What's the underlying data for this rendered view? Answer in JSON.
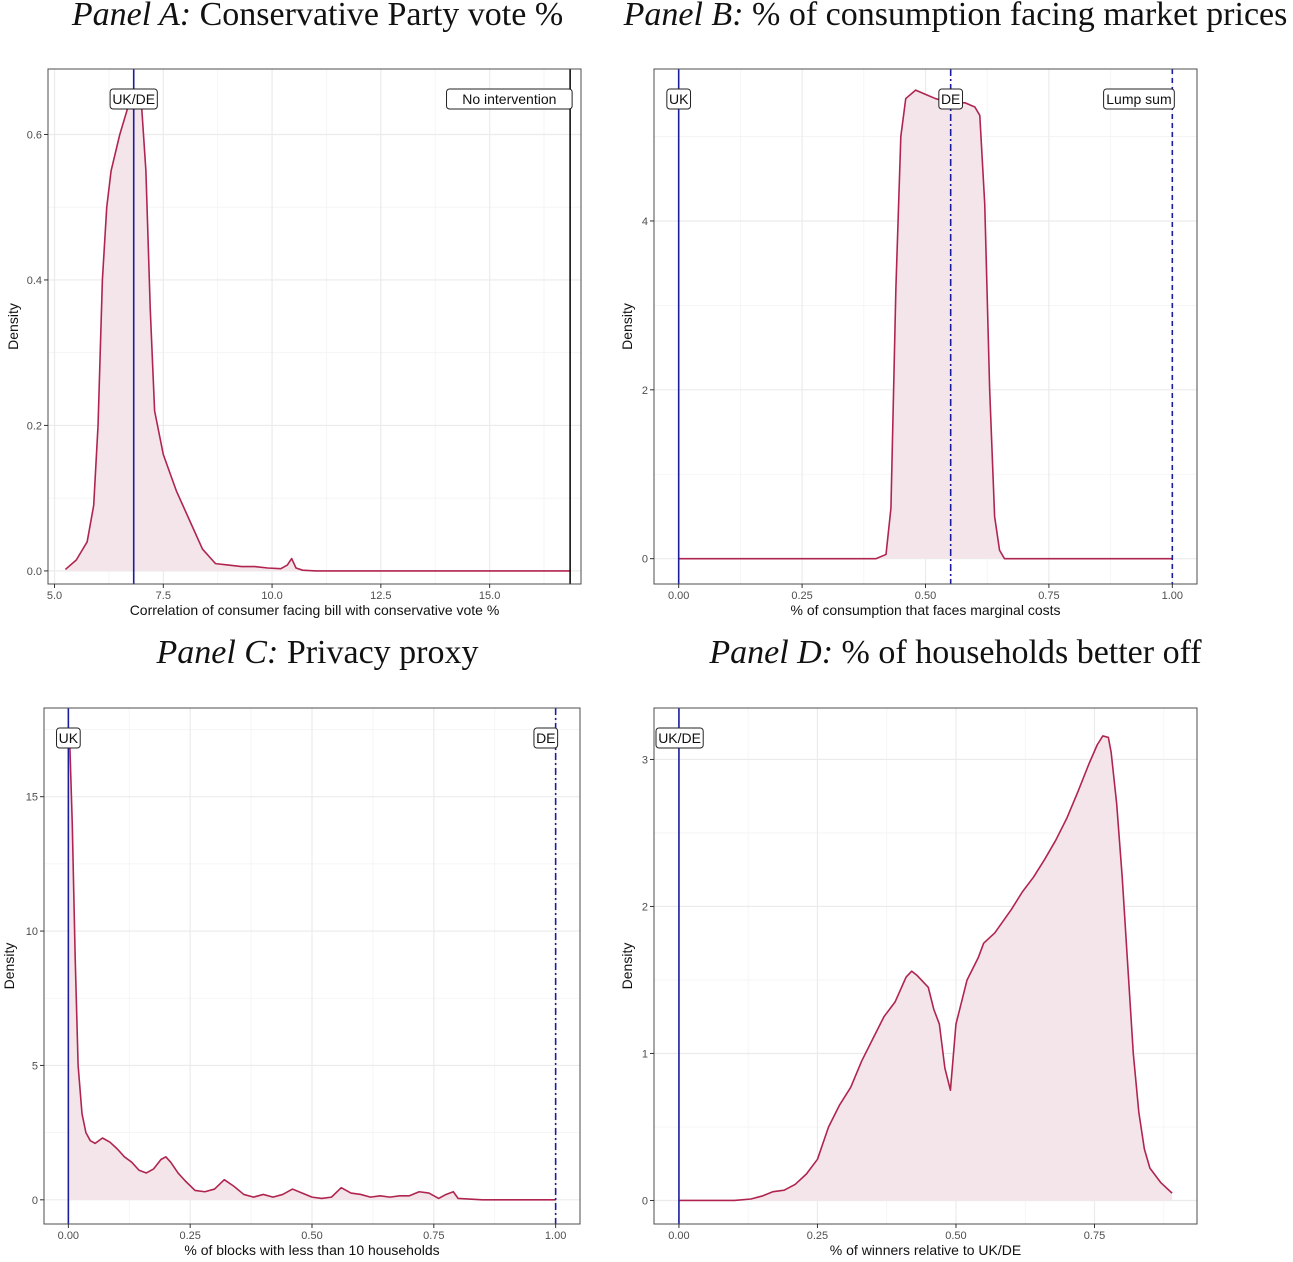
{
  "colors": {
    "density_line": "#b0254f",
    "density_fill": "#f4e5ea",
    "uk_line": "#1c1ca0",
    "de_line": "#1c1ca0",
    "black_line": "#111111",
    "grid": "#ebebeb",
    "frame": "#4d4d4d"
  },
  "chart_data": [
    {
      "type": "area",
      "panel_prefix": "Panel A:",
      "title": "Conservative Party vote %",
      "xlabel": "Correlation of consumer facing bill with conservative vote %",
      "ylabel": "Density",
      "xlim": [
        4.85,
        17.1
      ],
      "ylim": [
        -0.018,
        0.69
      ],
      "xticks": [
        5.0,
        7.5,
        10.0,
        12.5,
        15.0
      ],
      "xtick_labels": [
        "5.0",
        "7.5",
        "10.0",
        "12.5",
        "15.0"
      ],
      "yticks": [
        0.0,
        0.2,
        0.4,
        0.6
      ],
      "ytick_labels": [
        "0.0",
        "0.2",
        "0.4",
        "0.6"
      ],
      "grid": true,
      "series": [
        {
          "x": [
            5.25,
            5.5,
            5.75,
            5.9,
            6.0,
            6.1,
            6.2,
            6.3,
            6.5,
            6.7,
            6.85,
            7.0,
            7.1,
            7.2,
            7.3,
            7.5,
            7.8,
            8.1,
            8.4,
            8.7,
            9.0,
            9.3,
            9.6,
            9.9,
            10.2,
            10.35,
            10.45,
            10.55,
            10.7,
            11.0,
            12.0,
            13.0,
            14.0,
            15.0,
            16.0,
            16.85
          ],
          "y": [
            0.002,
            0.015,
            0.04,
            0.09,
            0.2,
            0.4,
            0.5,
            0.55,
            0.6,
            0.64,
            0.66,
            0.64,
            0.55,
            0.36,
            0.22,
            0.16,
            0.11,
            0.07,
            0.03,
            0.01,
            0.008,
            0.006,
            0.006,
            0.004,
            0.003,
            0.008,
            0.017,
            0.004,
            0.001,
            0.0,
            0.0,
            0.0,
            0.0,
            0.0,
            0.0,
            0.0
          ]
        }
      ],
      "vlines": [
        {
          "x": 6.82,
          "style": "solid",
          "color": "#1c1ca0",
          "label": "UK/DE"
        },
        {
          "x": 16.85,
          "style": "solid",
          "color": "#111111",
          "label": "No intervention",
          "label_anchor": "end"
        }
      ]
    },
    {
      "type": "area",
      "panel_prefix": "Panel B:",
      "title": "% of consumption facing market prices",
      "xlabel": "% of consumption that faces marginal costs",
      "ylabel": "Density",
      "xlim": [
        -0.05,
        1.05
      ],
      "ylim": [
        -0.3,
        5.8
      ],
      "xticks": [
        0.0,
        0.25,
        0.5,
        0.75,
        1.0
      ],
      "xtick_labels": [
        "0.00",
        "0.25",
        "0.50",
        "0.75",
        "1.00"
      ],
      "yticks": [
        0,
        2,
        4
      ],
      "ytick_labels": [
        "0",
        "2",
        "4"
      ],
      "grid": true,
      "series": [
        {
          "x": [
            0.0,
            0.2,
            0.4,
            0.42,
            0.43,
            0.44,
            0.45,
            0.46,
            0.48,
            0.5,
            0.52,
            0.55,
            0.58,
            0.6,
            0.61,
            0.62,
            0.63,
            0.64,
            0.65,
            0.66,
            0.7,
            0.85,
            1.0
          ],
          "y": [
            0.0,
            0.0,
            0.0,
            0.05,
            0.6,
            3.2,
            5.0,
            5.45,
            5.55,
            5.5,
            5.45,
            5.4,
            5.4,
            5.35,
            5.25,
            4.2,
            2.0,
            0.5,
            0.1,
            0.0,
            0.0,
            0.0,
            0.0
          ]
        }
      ],
      "vlines": [
        {
          "x": 0.0,
          "style": "solid",
          "color": "#1c1ca0",
          "label": "UK"
        },
        {
          "x": 0.551,
          "style": "dashdot",
          "color": "#1c1ca0",
          "label": "DE"
        },
        {
          "x": 1.0,
          "style": "dashed",
          "color": "#1c1ca0",
          "label": "Lump sum",
          "label_anchor": "end"
        }
      ]
    },
    {
      "type": "area",
      "panel_prefix": "Panel C:",
      "title": "Privacy proxy",
      "xlabel": "% of blocks with less than 10 households",
      "ylabel": "Density",
      "xlim": [
        -0.05,
        1.05
      ],
      "ylim": [
        -0.9,
        18.3
      ],
      "xticks": [
        0.0,
        0.25,
        0.5,
        0.75,
        1.0
      ],
      "xtick_labels": [
        "0.00",
        "0.25",
        "0.50",
        "0.75",
        "1.00"
      ],
      "yticks": [
        0,
        5,
        10,
        15
      ],
      "ytick_labels": [
        "0",
        "5",
        "10",
        "15"
      ],
      "grid": true,
      "series": [
        {
          "x": [
            0.002,
            0.008,
            0.014,
            0.02,
            0.028,
            0.036,
            0.045,
            0.055,
            0.07,
            0.085,
            0.1,
            0.115,
            0.13,
            0.145,
            0.16,
            0.175,
            0.19,
            0.2,
            0.21,
            0.225,
            0.24,
            0.26,
            0.28,
            0.3,
            0.32,
            0.34,
            0.36,
            0.38,
            0.4,
            0.42,
            0.44,
            0.46,
            0.48,
            0.5,
            0.52,
            0.54,
            0.56,
            0.58,
            0.6,
            0.62,
            0.64,
            0.66,
            0.68,
            0.7,
            0.72,
            0.74,
            0.76,
            0.775,
            0.79,
            0.8,
            0.85,
            0.9,
            1.0
          ],
          "y": [
            17.5,
            14.0,
            9.0,
            5.0,
            3.2,
            2.5,
            2.2,
            2.1,
            2.3,
            2.15,
            1.9,
            1.6,
            1.4,
            1.1,
            1.0,
            1.15,
            1.5,
            1.6,
            1.4,
            1.0,
            0.7,
            0.35,
            0.3,
            0.4,
            0.75,
            0.5,
            0.2,
            0.1,
            0.2,
            0.1,
            0.2,
            0.4,
            0.25,
            0.1,
            0.05,
            0.1,
            0.45,
            0.25,
            0.2,
            0.1,
            0.15,
            0.1,
            0.15,
            0.15,
            0.3,
            0.25,
            0.05,
            0.2,
            0.3,
            0.05,
            0.0,
            0.0,
            0.0
          ]
        }
      ],
      "vlines": [
        {
          "x": 0.0,
          "style": "solid",
          "color": "#1c1ca0",
          "label": "UK"
        },
        {
          "x": 1.0,
          "style": "dashdot",
          "color": "#1c1ca0",
          "label": "DE",
          "label_anchor": "end"
        }
      ]
    },
    {
      "type": "area",
      "panel_prefix": "Panel D:",
      "title": "% of households better off",
      "xlabel": "% of winners relative to UK/DE",
      "ylabel": "Density",
      "xlim": [
        -0.045,
        0.935
      ],
      "ylim": [
        -0.16,
        3.35
      ],
      "xticks": [
        0.0,
        0.25,
        0.5,
        0.75
      ],
      "xtick_labels": [
        "0.00",
        "0.25",
        "0.50",
        "0.75"
      ],
      "yticks": [
        0,
        1,
        2,
        3
      ],
      "ytick_labels": [
        "0",
        "1",
        "2",
        "3"
      ],
      "grid": true,
      "series": [
        {
          "x": [
            0.0,
            0.1,
            0.13,
            0.15,
            0.17,
            0.19,
            0.21,
            0.23,
            0.25,
            0.27,
            0.29,
            0.31,
            0.33,
            0.35,
            0.37,
            0.39,
            0.41,
            0.42,
            0.43,
            0.45,
            0.46,
            0.47,
            0.48,
            0.49,
            0.5,
            0.51,
            0.52,
            0.54,
            0.55,
            0.57,
            0.6,
            0.62,
            0.64,
            0.66,
            0.68,
            0.7,
            0.72,
            0.74,
            0.755,
            0.765,
            0.775,
            0.78,
            0.79,
            0.8,
            0.81,
            0.82,
            0.83,
            0.84,
            0.85,
            0.87,
            0.89
          ],
          "y": [
            0.0,
            0.0,
            0.01,
            0.03,
            0.06,
            0.07,
            0.11,
            0.18,
            0.28,
            0.5,
            0.65,
            0.77,
            0.95,
            1.1,
            1.25,
            1.35,
            1.52,
            1.56,
            1.53,
            1.45,
            1.3,
            1.2,
            0.9,
            0.75,
            1.2,
            1.35,
            1.5,
            1.65,
            1.75,
            1.82,
            1.98,
            2.1,
            2.2,
            2.32,
            2.45,
            2.6,
            2.78,
            2.97,
            3.1,
            3.16,
            3.15,
            3.05,
            2.7,
            2.2,
            1.6,
            1.0,
            0.6,
            0.35,
            0.22,
            0.12,
            0.05
          ]
        }
      ],
      "vlines": [
        {
          "x": 0.0,
          "style": "solid",
          "color": "#1c1ca0",
          "label": "UK/DE"
        }
      ]
    }
  ]
}
